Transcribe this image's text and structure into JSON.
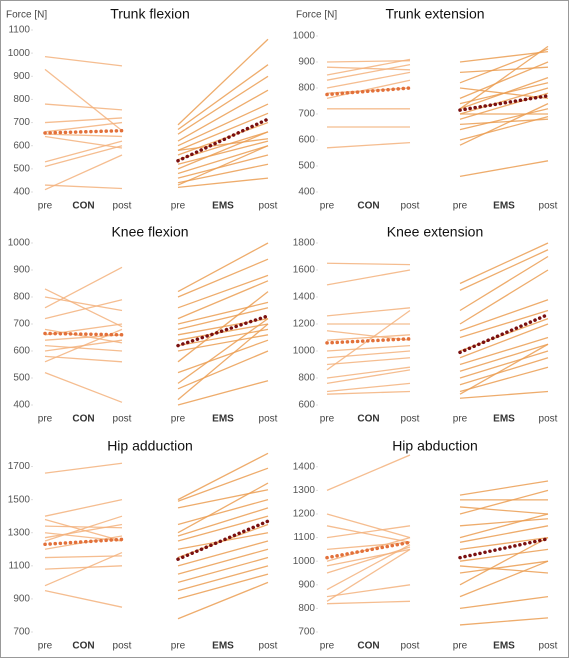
{
  "chart_data": [
    {
      "type": "slope",
      "title": "Trunk flexion",
      "ylabel": "Force [N]",
      "categories": [
        "pre",
        "post"
      ],
      "ylim": [
        400,
        1100
      ],
      "yticks": [
        400,
        500,
        600,
        700,
        800,
        900,
        1000,
        1100
      ],
      "groups": [
        {
          "name": "CON",
          "color": "#f3b27c",
          "mean_color": "#e2703a",
          "label_color": "#e2703a",
          "mean": [
            655,
            665
          ],
          "lines": [
            [
              985,
              945
            ],
            [
              930,
              665
            ],
            [
              780,
              755
            ],
            [
              700,
              720
            ],
            [
              660,
              700
            ],
            [
              650,
              640
            ],
            [
              640,
              590
            ],
            [
              530,
              620
            ],
            [
              510,
              600
            ],
            [
              430,
              415
            ],
            [
              410,
              560
            ]
          ]
        },
        {
          "name": "EMS",
          "color": "#eb9d52",
          "mean_color": "#7a1010",
          "label_color": "#8b1a1a",
          "mean": [
            535,
            715
          ],
          "lines": [
            [
              690,
              1060
            ],
            [
              670,
              950
            ],
            [
              650,
              900
            ],
            [
              620,
              840
            ],
            [
              600,
              780
            ],
            [
              580,
              740
            ],
            [
              560,
              700
            ],
            [
              540,
              660
            ],
            [
              520,
              620
            ],
            [
              500,
              660
            ],
            [
              480,
              600
            ],
            [
              460,
              560
            ],
            [
              440,
              520
            ],
            [
              430,
              600
            ],
            [
              420,
              460
            ],
            [
              580,
              630
            ]
          ]
        }
      ]
    },
    {
      "type": "slope",
      "title": "Trunk extension",
      "ylabel": "Force [N]",
      "categories": [
        "pre",
        "post"
      ],
      "ylim": [
        400,
        1000
      ],
      "yticks": [
        400,
        500,
        600,
        700,
        800,
        900,
        1000
      ],
      "groups": [
        {
          "name": "CON",
          "color": "#f3b27c",
          "mean_color": "#e2703a",
          "label_color": "#e2703a",
          "mean": [
            775,
            800
          ],
          "lines": [
            [
              900,
              905
            ],
            [
              880,
              870
            ],
            [
              850,
              910
            ],
            [
              830,
              890
            ],
            [
              800,
              860
            ],
            [
              780,
              800
            ],
            [
              760,
              830
            ],
            [
              720,
              720
            ],
            [
              650,
              650
            ],
            [
              570,
              590
            ]
          ]
        },
        {
          "name": "EMS",
          "color": "#eb9d52",
          "mean_color": "#7a1010",
          "label_color": "#8b1a1a",
          "mean": [
            715,
            770
          ],
          "lines": [
            [
              900,
              940
            ],
            [
              860,
              880
            ],
            [
              820,
              950
            ],
            [
              800,
              760
            ],
            [
              760,
              900
            ],
            [
              740,
              820
            ],
            [
              720,
              840
            ],
            [
              700,
              800
            ],
            [
              700,
              700
            ],
            [
              680,
              780
            ],
            [
              660,
              680
            ],
            [
              640,
              720
            ],
            [
              600,
              690
            ],
            [
              580,
              740
            ],
            [
              460,
              520
            ],
            [
              720,
              960
            ]
          ]
        }
      ]
    },
    {
      "type": "slope",
      "title": "Knee flexion",
      "categories": [
        "pre",
        "post"
      ],
      "ylim": [
        400,
        1000
      ],
      "yticks": [
        400,
        500,
        600,
        700,
        800,
        900,
        1000
      ],
      "groups": [
        {
          "name": "CON",
          "color": "#f3b27c",
          "mean_color": "#e2703a",
          "label_color": "#e2703a",
          "mean": [
            665,
            660
          ],
          "lines": [
            [
              830,
              690
            ],
            [
              800,
              750
            ],
            [
              760,
              910
            ],
            [
              720,
              790
            ],
            [
              680,
              630
            ],
            [
              660,
              700
            ],
            [
              640,
              660
            ],
            [
              620,
              600
            ],
            [
              600,
              640
            ],
            [
              580,
              560
            ],
            [
              520,
              410
            ],
            [
              560,
              680
            ]
          ]
        },
        {
          "name": "EMS",
          "color": "#eb9d52",
          "mean_color": "#7a1010",
          "label_color": "#8b1a1a",
          "mean": [
            620,
            730
          ],
          "lines": [
            [
              820,
              1000
            ],
            [
              800,
              940
            ],
            [
              760,
              880
            ],
            [
              720,
              860
            ],
            [
              700,
              780
            ],
            [
              680,
              760
            ],
            [
              660,
              720
            ],
            [
              640,
              700
            ],
            [
              620,
              680
            ],
            [
              600,
              660
            ],
            [
              560,
              820
            ],
            [
              520,
              640
            ],
            [
              480,
              720
            ],
            [
              460,
              600
            ],
            [
              400,
              490
            ],
            [
              420,
              700
            ]
          ]
        }
      ]
    },
    {
      "type": "slope",
      "title": "Knee extension",
      "categories": [
        "pre",
        "post"
      ],
      "ylim": [
        600,
        1800
      ],
      "yticks": [
        600,
        800,
        1000,
        1200,
        1400,
        1600,
        1800
      ],
      "groups": [
        {
          "name": "CON",
          "color": "#f3b27c",
          "mean_color": "#e2703a",
          "label_color": "#e2703a",
          "mean": [
            1060,
            1090
          ],
          "lines": [
            [
              1650,
              1640
            ],
            [
              1490,
              1600
            ],
            [
              1260,
              1320
            ],
            [
              1200,
              1200
            ],
            [
              1150,
              1080
            ],
            [
              1080,
              1120
            ],
            [
              1000,
              1040
            ],
            [
              950,
              1000
            ],
            [
              900,
              950
            ],
            [
              860,
              1300
            ],
            [
              800,
              880
            ],
            [
              760,
              860
            ],
            [
              700,
              760
            ],
            [
              680,
              700
            ]
          ]
        },
        {
          "name": "EMS",
          "color": "#eb9d52",
          "mean_color": "#7a1010",
          "label_color": "#8b1a1a",
          "mean": [
            990,
            1270
          ],
          "lines": [
            [
              1500,
              1800
            ],
            [
              1450,
              1750
            ],
            [
              1300,
              1700
            ],
            [
              1200,
              1600
            ],
            [
              1150,
              1380
            ],
            [
              1100,
              1300
            ],
            [
              1000,
              1240
            ],
            [
              950,
              1200
            ],
            [
              900,
              1100
            ],
            [
              850,
              1050
            ],
            [
              800,
              1000
            ],
            [
              750,
              950
            ],
            [
              700,
              880
            ],
            [
              650,
              700
            ],
            [
              680,
              1050
            ]
          ]
        }
      ]
    },
    {
      "type": "slope",
      "title": "Hip adduction",
      "categories": [
        "pre",
        "post"
      ],
      "ylim": [
        700,
        1800
      ],
      "yticks": [
        700,
        900,
        1100,
        1300,
        1500,
        1700
      ],
      "groups": [
        {
          "name": "CON",
          "color": "#f3b27c",
          "mean_color": "#e2703a",
          "label_color": "#e2703a",
          "mean": [
            1230,
            1260
          ],
          "lines": [
            [
              1660,
              1720
            ],
            [
              1400,
              1500
            ],
            [
              1380,
              1250
            ],
            [
              1340,
              1330
            ],
            [
              1300,
              1250
            ],
            [
              1270,
              1350
            ],
            [
              1250,
              1400
            ],
            [
              1200,
              1280
            ],
            [
              1150,
              1160
            ],
            [
              1080,
              1100
            ],
            [
              980,
              1180
            ],
            [
              950,
              850
            ]
          ]
        },
        {
          "name": "EMS",
          "color": "#eb9d52",
          "mean_color": "#7a1010",
          "label_color": "#8b1a1a",
          "mean": [
            1140,
            1370
          ],
          "lines": [
            [
              1500,
              1780
            ],
            [
              1490,
              1690
            ],
            [
              1450,
              1560
            ],
            [
              1350,
              1500
            ],
            [
              1300,
              1600
            ],
            [
              1280,
              1450
            ],
            [
              1250,
              1400
            ],
            [
              1200,
              1300
            ],
            [
              1150,
              1350
            ],
            [
              1100,
              1250
            ],
            [
              1050,
              1200
            ],
            [
              1000,
              1150
            ],
            [
              950,
              1100
            ],
            [
              900,
              1050
            ],
            [
              780,
              1000
            ]
          ]
        }
      ]
    },
    {
      "type": "slope",
      "title": "Hip abduction",
      "categories": [
        "pre",
        "post"
      ],
      "ylim": [
        700,
        1450
      ],
      "yticks": [
        700,
        800,
        900,
        1000,
        1100,
        1200,
        1300,
        1400
      ],
      "groups": [
        {
          "name": "CON",
          "color": "#f3b27c",
          "mean_color": "#e2703a",
          "label_color": "#e2703a",
          "mean": [
            1015,
            1080
          ],
          "lines": [
            [
              1300,
              1450
            ],
            [
              1200,
              1100
            ],
            [
              1150,
              1080
            ],
            [
              1100,
              1150
            ],
            [
              1050,
              1080
            ],
            [
              1000,
              1100
            ],
            [
              980,
              1050
            ],
            [
              950,
              1060
            ],
            [
              880,
              1070
            ],
            [
              850,
              900
            ],
            [
              820,
              830
            ],
            [
              830,
              1050
            ]
          ]
        },
        {
          "name": "EMS",
          "color": "#eb9d52",
          "mean_color": "#7a1010",
          "label_color": "#8b1a1a",
          "mean": [
            1015,
            1095
          ],
          "lines": [
            [
              1280,
              1340
            ],
            [
              1260,
              1260
            ],
            [
              1230,
              1200
            ],
            [
              1200,
              1300
            ],
            [
              1150,
              1180
            ],
            [
              1100,
              1200
            ],
            [
              1080,
              1150
            ],
            [
              1050,
              1100
            ],
            [
              1000,
              1050
            ],
            [
              980,
              950
            ],
            [
              950,
              1000
            ],
            [
              900,
              1100
            ],
            [
              850,
              1000
            ],
            [
              800,
              850
            ],
            [
              730,
              760
            ]
          ]
        }
      ]
    }
  ]
}
